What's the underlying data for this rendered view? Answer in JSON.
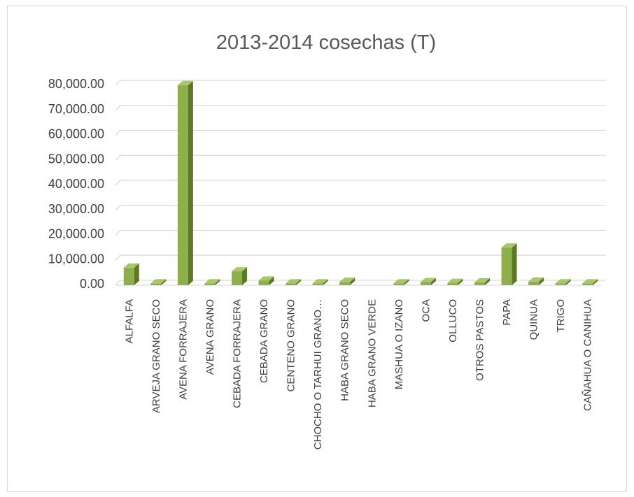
{
  "chart_data": {
    "type": "bar",
    "title": "2013-2014  cosechas (T)",
    "xlabel": "",
    "ylabel": "",
    "ylim": [
      0,
      80000
    ],
    "yticks": [
      "0.00",
      "10,000.00",
      "20,000.00",
      "30,000.00",
      "40,000.00",
      "50,000.00",
      "60,000.00",
      "70,000.00",
      "80,000.00"
    ],
    "grid": true,
    "legend": "none",
    "bar_color": "#8db04b",
    "categories": [
      "ALFALFA",
      "ARVEJA GRANO SECO",
      "AVENA FORRAJERA",
      "AVENA GRANO",
      "CEBADA  FORRAJERA",
      "CEBADA GRANO",
      "CENTENO GRANO",
      "CHOCHO O TARHUI GRANO…",
      "HABA GRANO SECO",
      "HABA GRANO VERDE",
      "MASHUA O IZANO",
      "OCA",
      "OLLUCO",
      "OTROS PASTOS",
      "PAPA",
      "QUINUA",
      "TRIGO",
      "CAÑAHUA O CANIHUA"
    ],
    "values": [
      6500,
      200,
      79500,
      200,
      5000,
      1300,
      200,
      200,
      800,
      0,
      200,
      700,
      400,
      600,
      14500,
      900,
      200,
      200
    ]
  }
}
